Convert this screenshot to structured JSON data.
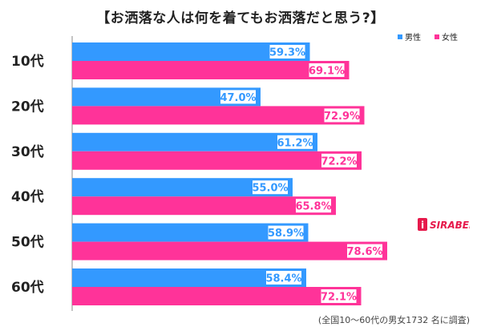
{
  "title": "【お洒落な人は何を着てもお洒落だと思う?】",
  "footnote": "(全国10〜60代の男女1732 名に調査)",
  "logo_text": "SIRABEE",
  "colors": {
    "male": "#3399ff",
    "female": "#ff3399",
    "label_bg": "#ffffff"
  },
  "chart_data": {
    "type": "bar",
    "orientation": "horizontal",
    "categories": [
      "10代",
      "20代",
      "30代",
      "40代",
      "50代",
      "60代"
    ],
    "series": [
      {
        "name": "男性",
        "values": [
          59.3,
          47.0,
          61.2,
          55.0,
          58.9,
          58.4
        ]
      },
      {
        "name": "女性",
        "values": [
          69.1,
          72.9,
          72.2,
          65.8,
          78.6,
          72.1
        ]
      }
    ],
    "value_suffix": "%",
    "xlim": [
      0,
      100
    ],
    "grid": false,
    "legend_position": "top-right"
  }
}
